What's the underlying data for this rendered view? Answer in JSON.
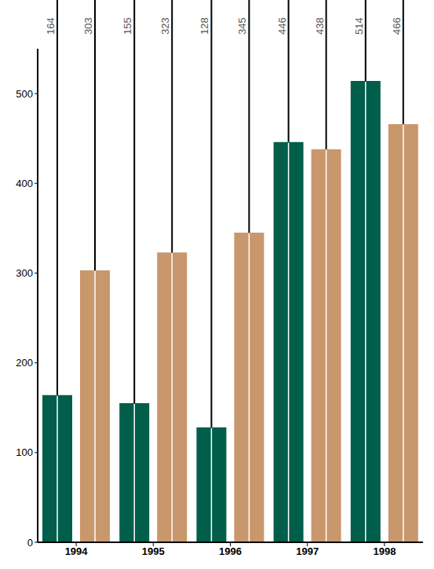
{
  "chart_data": {
    "type": "bar",
    "categories": [
      "1994",
      "1995",
      "1996",
      "1997",
      "1998"
    ],
    "series": [
      {
        "color": "#005e4a",
        "values": [
          164,
          155,
          128,
          446,
          514
        ]
      },
      {
        "color": "#c9976c",
        "values": [
          303,
          323,
          345,
          438,
          466
        ]
      }
    ],
    "ylim": [
      0,
      550
    ],
    "yticks": [
      0,
      100,
      200,
      300,
      400,
      500
    ],
    "grid": false,
    "data_labels": true
  }
}
